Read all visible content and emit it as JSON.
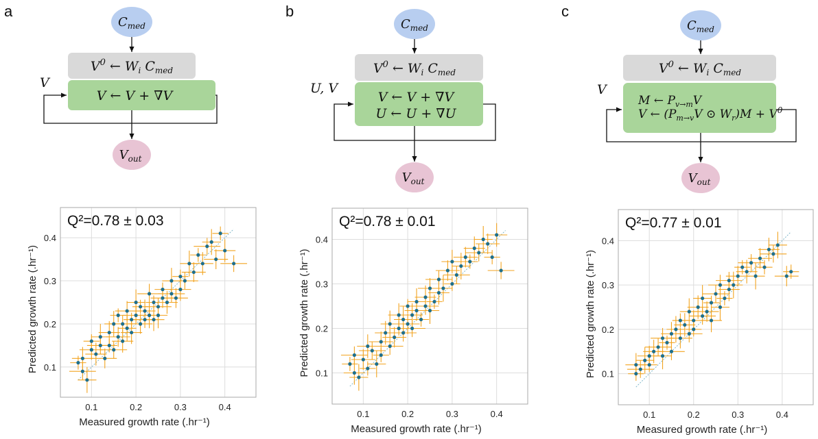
{
  "panels": [
    {
      "letter": "a",
      "input_node": "C_med",
      "init_box": "V⁰ ← Wᵢ C_med",
      "loop_label": "V",
      "update_lines": [
        "V ← V + ∇V"
      ],
      "output_node": "V_out",
      "q2_label": "Q²=0.78 ± 0.03"
    },
    {
      "letter": "b",
      "input_node": "C_med",
      "init_box": "V⁰ ← Wᵢ C_med",
      "loop_label": "U, V",
      "update_lines": [
        "V ← V + ∇V",
        "U ← U + ∇U"
      ],
      "output_node": "V_out",
      "q2_label": "Q²=0.78 ± 0.01"
    },
    {
      "letter": "c",
      "input_node": "C_med",
      "init_box": "V⁰ ← Wᵢ C_med",
      "loop_label": "V",
      "update_lines": [
        "M ← P_v→m V",
        "V ← (P_m→v V ⊙ W_r)M + V⁰"
      ],
      "output_node": "V_out",
      "q2_label": "Q²=0.77 ± 0.01"
    }
  ],
  "colors": {
    "input_node": "#b8cef0",
    "init_box": "#d9d9d9",
    "update_box": "#a9d59a",
    "output_node": "#e8c4d4",
    "points": "#1f6f8b",
    "error_bars": "#f2a31f",
    "diagonal": "#7fb7c9"
  },
  "chart_data": [
    {
      "type": "scatter",
      "title": "Q²=0.78 ± 0.03",
      "xlabel": "Measured growth rate (.hr⁻¹)",
      "ylabel": "Predicted growth rate (.hr⁻¹)",
      "xlim": [
        0.03,
        0.47
      ],
      "ylim": [
        0.03,
        0.47
      ],
      "xticks": [
        0.1,
        0.2,
        0.3,
        0.4
      ],
      "yticks": [
        0.1,
        0.2,
        0.3,
        0.4
      ],
      "grid": true,
      "series": [
        {
          "x": [
            0.07,
            0.08,
            0.08,
            0.09,
            0.1,
            0.1,
            0.11,
            0.12,
            0.12,
            0.13,
            0.14,
            0.14,
            0.15,
            0.15,
            0.16,
            0.16,
            0.17,
            0.17,
            0.18,
            0.18,
            0.19,
            0.19,
            0.2,
            0.2,
            0.21,
            0.21,
            0.22,
            0.22,
            0.23,
            0.23,
            0.24,
            0.24,
            0.25,
            0.25,
            0.26,
            0.26,
            0.27,
            0.28,
            0.28,
            0.29,
            0.3,
            0.3,
            0.31,
            0.32,
            0.33,
            0.34,
            0.35,
            0.36,
            0.37,
            0.38,
            0.39,
            0.4,
            0.42
          ],
          "y": [
            0.11,
            0.12,
            0.09,
            0.07,
            0.14,
            0.16,
            0.13,
            0.15,
            0.17,
            0.12,
            0.15,
            0.18,
            0.14,
            0.2,
            0.17,
            0.22,
            0.16,
            0.2,
            0.19,
            0.23,
            0.21,
            0.18,
            0.22,
            0.25,
            0.2,
            0.24,
            0.23,
            0.21,
            0.22,
            0.27,
            0.25,
            0.21,
            0.24,
            0.22,
            0.26,
            0.28,
            0.25,
            0.27,
            0.3,
            0.26,
            0.31,
            0.28,
            0.3,
            0.34,
            0.32,
            0.36,
            0.34,
            0.38,
            0.39,
            0.35,
            0.41,
            0.37,
            0.34
          ]
        }
      ]
    },
    {
      "type": "scatter",
      "title": "Q²=0.78 ± 0.01",
      "xlabel": "Measured growth rate (.hr⁻¹)",
      "ylabel": "Predicted growth rate (.hr⁻¹)",
      "xlim": [
        0.03,
        0.47
      ],
      "ylim": [
        0.03,
        0.47
      ],
      "xticks": [
        0.1,
        0.2,
        0.3,
        0.4
      ],
      "yticks": [
        0.1,
        0.2,
        0.3,
        0.4
      ],
      "grid": true,
      "series": [
        {
          "x": [
            0.07,
            0.08,
            0.08,
            0.09,
            0.1,
            0.11,
            0.11,
            0.12,
            0.13,
            0.14,
            0.14,
            0.15,
            0.16,
            0.16,
            0.17,
            0.18,
            0.18,
            0.19,
            0.19,
            0.2,
            0.2,
            0.21,
            0.21,
            0.22,
            0.22,
            0.23,
            0.24,
            0.24,
            0.25,
            0.25,
            0.26,
            0.27,
            0.27,
            0.28,
            0.29,
            0.3,
            0.3,
            0.31,
            0.32,
            0.33,
            0.34,
            0.35,
            0.36,
            0.37,
            0.38,
            0.39,
            0.4,
            0.41
          ],
          "y": [
            0.12,
            0.1,
            0.14,
            0.09,
            0.13,
            0.11,
            0.16,
            0.15,
            0.12,
            0.17,
            0.14,
            0.19,
            0.16,
            0.21,
            0.18,
            0.2,
            0.23,
            0.19,
            0.22,
            0.21,
            0.25,
            0.23,
            0.2,
            0.26,
            0.24,
            0.22,
            0.27,
            0.25,
            0.24,
            0.29,
            0.26,
            0.28,
            0.31,
            0.29,
            0.33,
            0.3,
            0.35,
            0.32,
            0.34,
            0.36,
            0.35,
            0.38,
            0.37,
            0.4,
            0.39,
            0.36,
            0.41,
            0.33
          ]
        }
      ]
    },
    {
      "type": "scatter",
      "title": "Q²=0.77 ± 0.01",
      "xlabel": "Measured growth rate (.hr⁻¹)",
      "ylabel": "Predicted growth rate (.hr⁻¹)",
      "xlim": [
        0.03,
        0.47
      ],
      "ylim": [
        0.03,
        0.47
      ],
      "xticks": [
        0.1,
        0.2,
        0.3,
        0.4
      ],
      "yticks": [
        0.1,
        0.2,
        0.3,
        0.4
      ],
      "grid": true,
      "series": [
        {
          "x": [
            0.07,
            0.07,
            0.08,
            0.09,
            0.1,
            0.1,
            0.11,
            0.12,
            0.13,
            0.13,
            0.14,
            0.15,
            0.15,
            0.16,
            0.17,
            0.17,
            0.18,
            0.19,
            0.19,
            0.2,
            0.2,
            0.21,
            0.22,
            0.22,
            0.23,
            0.24,
            0.24,
            0.25,
            0.26,
            0.26,
            0.27,
            0.28,
            0.28,
            0.29,
            0.3,
            0.31,
            0.32,
            0.33,
            0.34,
            0.35,
            0.36,
            0.37,
            0.38,
            0.39,
            0.41,
            0.42
          ],
          "y": [
            0.1,
            0.12,
            0.11,
            0.13,
            0.14,
            0.12,
            0.15,
            0.16,
            0.14,
            0.18,
            0.17,
            0.19,
            0.15,
            0.2,
            0.18,
            0.22,
            0.21,
            0.19,
            0.24,
            0.22,
            0.2,
            0.25,
            0.23,
            0.27,
            0.24,
            0.26,
            0.22,
            0.28,
            0.25,
            0.3,
            0.27,
            0.29,
            0.31,
            0.3,
            0.32,
            0.34,
            0.33,
            0.35,
            0.32,
            0.36,
            0.34,
            0.38,
            0.37,
            0.39,
            0.32,
            0.33
          ]
        }
      ]
    }
  ]
}
